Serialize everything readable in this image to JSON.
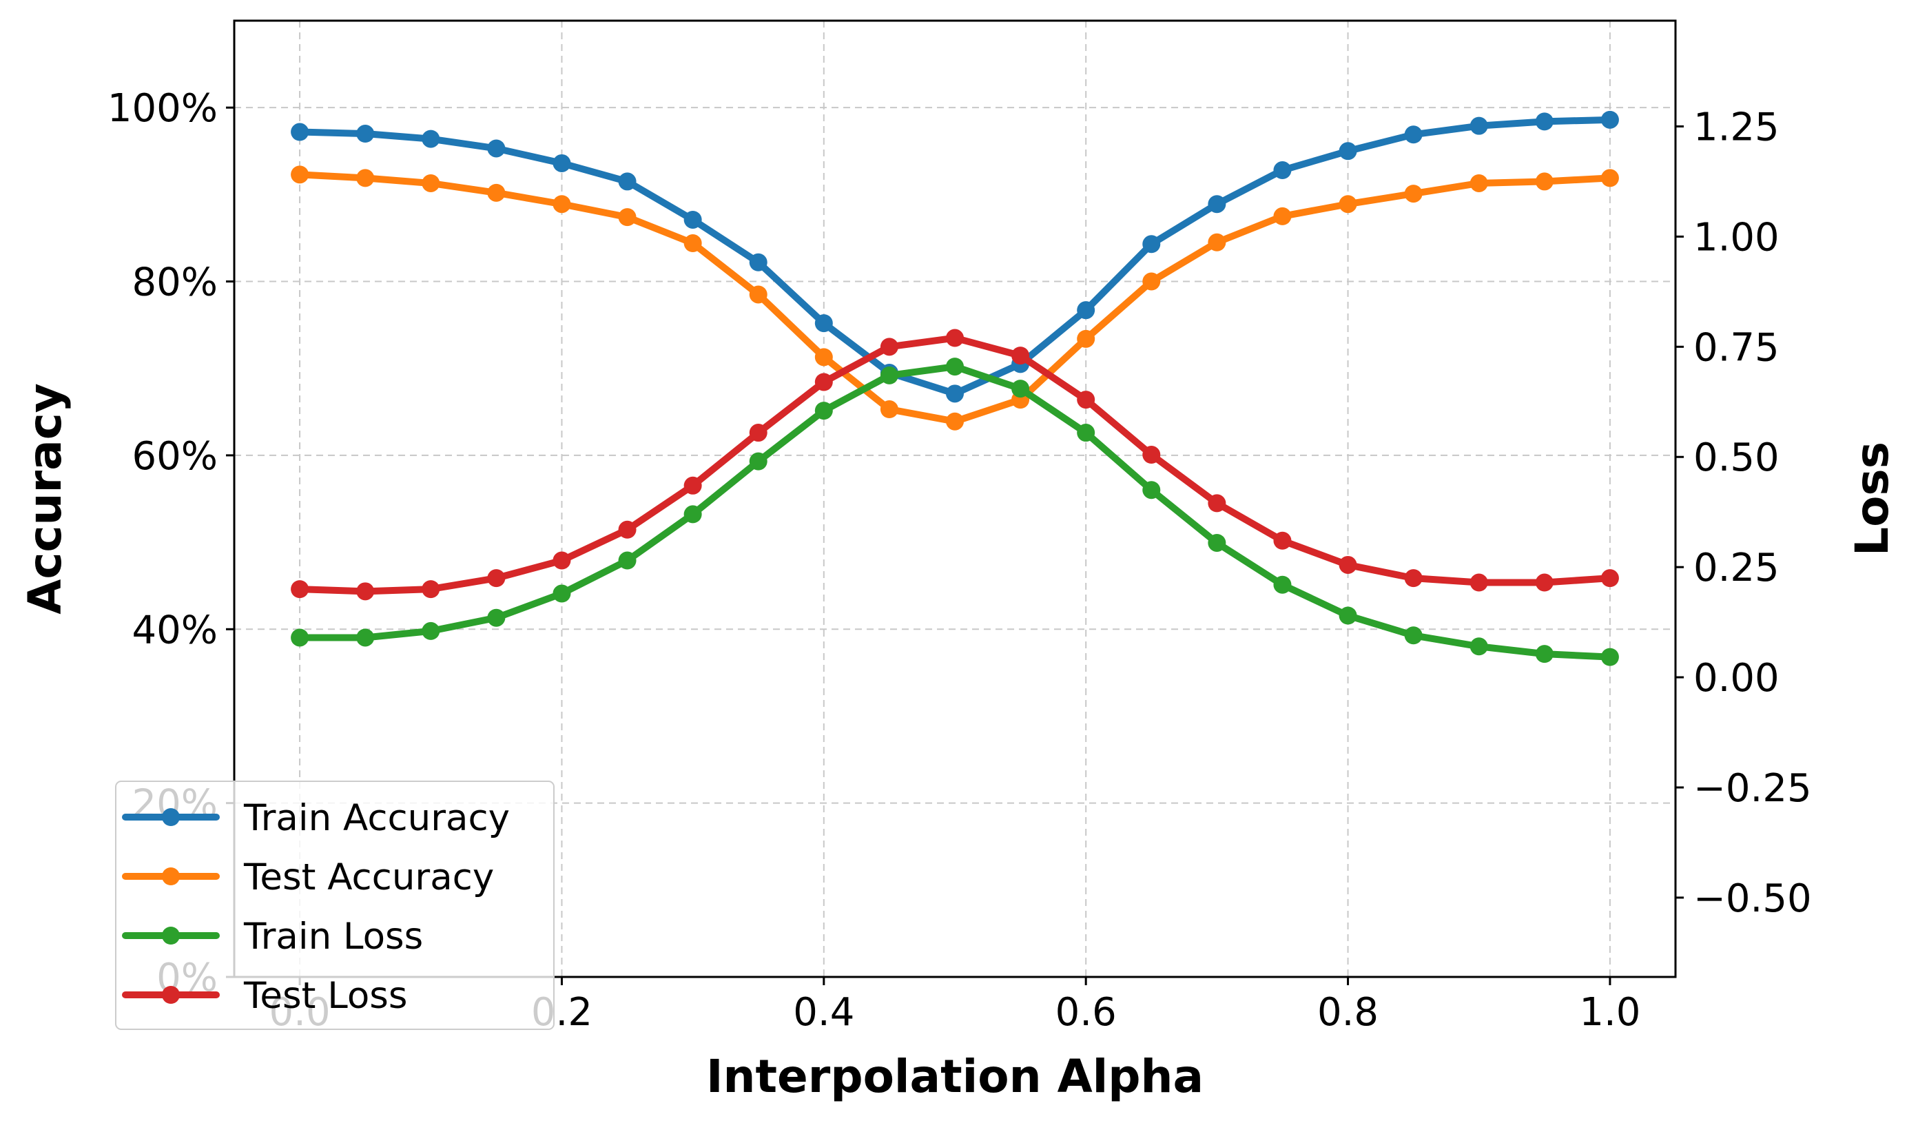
{
  "chart_data": {
    "type": "line",
    "xlabel": "Interpolation Alpha",
    "ylabel_left": "Accuracy",
    "ylabel_right": "Loss",
    "xlim": [
      -0.05,
      1.05
    ],
    "ylim_left": [
      0,
      110
    ],
    "ylim_right": [
      -0.68,
      1.49
    ],
    "x_ticks": [
      0.0,
      0.2,
      0.4,
      0.6,
      0.8,
      1.0
    ],
    "x_tick_labels": [
      "0.0",
      "0.2",
      "0.4",
      "0.6",
      "0.8",
      "1.0"
    ],
    "y_left_ticks": [
      0,
      20,
      40,
      60,
      80,
      100
    ],
    "y_left_tick_labels": [
      "0%",
      "20%",
      "40%",
      "60%",
      "80%",
      "100%"
    ],
    "y_right_ticks": [
      -0.5,
      -0.25,
      0.0,
      0.25,
      0.5,
      0.75,
      1.0,
      1.25
    ],
    "y_right_tick_labels": [
      "−0.50",
      "−0.25",
      "0.00",
      "0.25",
      "0.50",
      "0.75",
      "1.00",
      "1.25"
    ],
    "grid": true,
    "legend_position": "lower-left",
    "x": [
      0.0,
      0.05,
      0.1,
      0.15,
      0.2,
      0.25,
      0.3,
      0.35,
      0.4,
      0.45,
      0.5,
      0.55,
      0.6,
      0.65,
      0.7,
      0.75,
      0.8,
      0.85,
      0.9,
      0.95,
      1.0
    ],
    "series": [
      {
        "name": "Train Accuracy",
        "axis": "left",
        "color": "#1f77b4",
        "values": [
          97.2,
          97.0,
          96.4,
          95.3,
          93.6,
          91.5,
          87.1,
          82.2,
          75.2,
          69.5,
          67.1,
          70.5,
          76.7,
          84.3,
          88.9,
          92.8,
          95.0,
          96.9,
          97.9,
          98.4,
          98.6
        ]
      },
      {
        "name": "Test Accuracy",
        "axis": "left",
        "color": "#ff7f0e",
        "values": [
          92.3,
          91.9,
          91.3,
          90.2,
          88.9,
          87.4,
          84.4,
          78.5,
          71.3,
          65.3,
          63.9,
          66.4,
          73.4,
          80.0,
          84.5,
          87.5,
          88.9,
          90.1,
          91.3,
          91.5,
          91.9
        ]
      },
      {
        "name": "Train Loss",
        "axis": "right",
        "color": "#2ca02c",
        "values": [
          0.09,
          0.09,
          0.105,
          0.135,
          0.19,
          0.265,
          0.37,
          0.49,
          0.605,
          0.685,
          0.705,
          0.655,
          0.555,
          0.425,
          0.305,
          0.21,
          0.14,
          0.095,
          0.07,
          0.053,
          0.046
        ]
      },
      {
        "name": "Test Loss",
        "axis": "right",
        "color": "#d62728",
        "values": [
          0.2,
          0.195,
          0.2,
          0.225,
          0.265,
          0.335,
          0.435,
          0.555,
          0.67,
          0.75,
          0.77,
          0.73,
          0.63,
          0.505,
          0.395,
          0.31,
          0.255,
          0.225,
          0.215,
          0.215,
          0.225
        ]
      }
    ]
  }
}
